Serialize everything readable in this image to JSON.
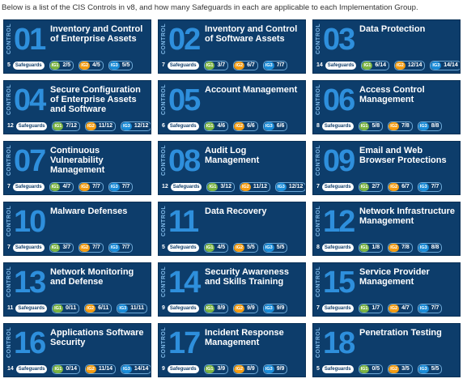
{
  "intro": "Below is a list of the CIS Controls in v8, and how many Safeguards in each are applicable to each Implementation Group.",
  "control_label": "CONTROL",
  "safeguards_label": "Safeguards",
  "ig_labels": [
    "IG1",
    "IG2",
    "IG3"
  ],
  "colors": {
    "card": "#0d3d6b",
    "number": "#2e8fdc",
    "ig1": "#7bb342",
    "ig2": "#f39c12",
    "ig3": "#1a8cd8"
  },
  "controls": [
    {
      "num": "01",
      "title": "Inventory and Control of Enterprise Assets",
      "safeguards": "5",
      "ig1": "2/5",
      "ig2": "4/5",
      "ig3": "5/5"
    },
    {
      "num": "02",
      "title": "Inventory and Control of Software Assets",
      "safeguards": "7",
      "ig1": "3/7",
      "ig2": "6/7",
      "ig3": "7/7"
    },
    {
      "num": "03",
      "title": "Data Protection",
      "safeguards": "14",
      "ig1": "6/14",
      "ig2": "12/14",
      "ig3": "14/14"
    },
    {
      "num": "04",
      "title": "Secure Configuration of Enterprise Assets and Software",
      "safeguards": "12",
      "ig1": "7/12",
      "ig2": "11/12",
      "ig3": "12/12"
    },
    {
      "num": "05",
      "title": "Account Management",
      "safeguards": "6",
      "ig1": "4/6",
      "ig2": "6/6",
      "ig3": "6/6"
    },
    {
      "num": "06",
      "title": "Access Control Management",
      "safeguards": "8",
      "ig1": "5/8",
      "ig2": "7/8",
      "ig3": "8/8"
    },
    {
      "num": "07",
      "title": "Continuous Vulnerability Management",
      "safeguards": "7",
      "ig1": "4/7",
      "ig2": "7/7",
      "ig3": "7/7"
    },
    {
      "num": "08",
      "title": "Audit Log Management",
      "safeguards": "12",
      "ig1": "3/12",
      "ig2": "11/12",
      "ig3": "12/12"
    },
    {
      "num": "09",
      "title": "Email and Web Browser Protections",
      "safeguards": "7",
      "ig1": "2/7",
      "ig2": "6/7",
      "ig3": "7/7"
    },
    {
      "num": "10",
      "title": "Malware Defenses",
      "safeguards": "7",
      "ig1": "3/7",
      "ig2": "7/7",
      "ig3": "7/7"
    },
    {
      "num": "11",
      "title": "Data Recovery",
      "safeguards": "5",
      "ig1": "4/5",
      "ig2": "5/5",
      "ig3": "5/5"
    },
    {
      "num": "12",
      "title": "Network Infrastructure Management",
      "safeguards": "8",
      "ig1": "1/8",
      "ig2": "7/8",
      "ig3": "8/8"
    },
    {
      "num": "13",
      "title": "Network Monitoring and Defense",
      "safeguards": "11",
      "ig1": "0/11",
      "ig2": "6/11",
      "ig3": "11/11"
    },
    {
      "num": "14",
      "title": "Security Awareness and Skills Training",
      "safeguards": "9",
      "ig1": "8/9",
      "ig2": "9/9",
      "ig3": "9/9"
    },
    {
      "num": "15",
      "title": "Service Provider Management",
      "safeguards": "7",
      "ig1": "1/7",
      "ig2": "4/7",
      "ig3": "7/7"
    },
    {
      "num": "16",
      "title": "Applications Software Security",
      "safeguards": "14",
      "ig1": "0/14",
      "ig2": "11/14",
      "ig3": "14/14"
    },
    {
      "num": "17",
      "title": "Incident Response Management",
      "safeguards": "9",
      "ig1": "3/9",
      "ig2": "8/9",
      "ig3": "9/9"
    },
    {
      "num": "18",
      "title": "Penetration Testing",
      "safeguards": "5",
      "ig1": "0/5",
      "ig2": "3/5",
      "ig3": "5/5"
    }
  ]
}
